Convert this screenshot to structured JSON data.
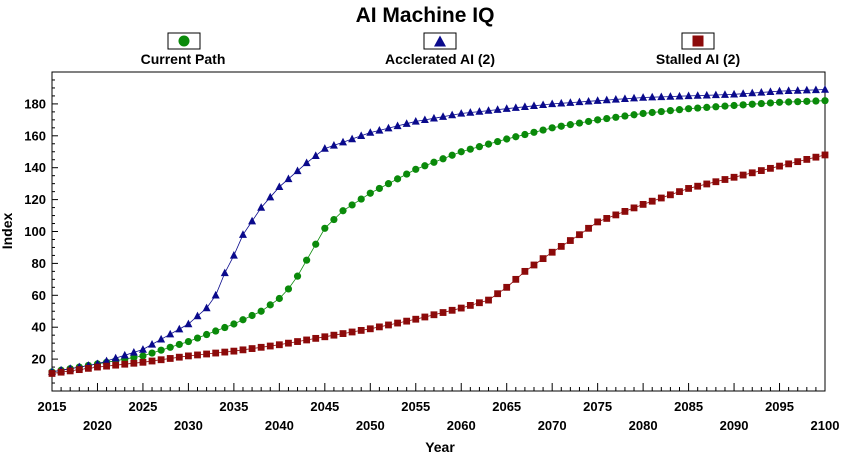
{
  "chart_data": {
    "type": "line",
    "title": "AI Machine IQ",
    "xlabel": "Year",
    "ylabel": "Index",
    "xlim": [
      2015,
      2100
    ],
    "ylim": [
      0,
      200
    ],
    "x_ticks": [
      2015,
      2020,
      2025,
      2030,
      2035,
      2040,
      2045,
      2050,
      2055,
      2060,
      2065,
      2070,
      2075,
      2080,
      2085,
      2090,
      2095,
      2100
    ],
    "y_ticks": [
      20,
      40,
      60,
      80,
      100,
      120,
      140,
      160,
      180
    ],
    "legend_placement": "top",
    "grid": false,
    "series": [
      {
        "name": "Current Path",
        "color": "#0a8a0a",
        "marker": "circle",
        "points": [
          [
            2015,
            12
          ],
          [
            2020,
            17
          ],
          [
            2025,
            22
          ],
          [
            2030,
            31
          ],
          [
            2035,
            42
          ],
          [
            2038,
            50
          ],
          [
            2040,
            58
          ],
          [
            2041,
            64
          ],
          [
            2042,
            72
          ],
          [
            2043,
            82
          ],
          [
            2044,
            92
          ],
          [
            2045,
            102
          ],
          [
            2047,
            113
          ],
          [
            2050,
            124
          ],
          [
            2055,
            139
          ],
          [
            2060,
            150
          ],
          [
            2065,
            158
          ],
          [
            2070,
            165
          ],
          [
            2075,
            170
          ],
          [
            2080,
            174
          ],
          [
            2085,
            177
          ],
          [
            2090,
            179
          ],
          [
            2095,
            181
          ],
          [
            2100,
            182
          ]
        ]
      },
      {
        "name": "Acclerated AI (2)",
        "color": "#0a0a8c",
        "marker": "triangle",
        "points": [
          [
            2015,
            12
          ],
          [
            2020,
            17
          ],
          [
            2025,
            26
          ],
          [
            2030,
            42
          ],
          [
            2032,
            52
          ],
          [
            2033,
            60
          ],
          [
            2034,
            74
          ],
          [
            2035,
            85
          ],
          [
            2036,
            98
          ],
          [
            2038,
            115
          ],
          [
            2040,
            128
          ],
          [
            2043,
            143
          ],
          [
            2045,
            152
          ],
          [
            2050,
            162
          ],
          [
            2055,
            169
          ],
          [
            2060,
            174
          ],
          [
            2065,
            177
          ],
          [
            2070,
            180
          ],
          [
            2075,
            182
          ],
          [
            2080,
            184
          ],
          [
            2085,
            185
          ],
          [
            2090,
            186
          ],
          [
            2095,
            188
          ],
          [
            2100,
            189
          ]
        ]
      },
      {
        "name": "Stalled AI (2)",
        "color": "#8c0a0a",
        "marker": "square",
        "points": [
          [
            2015,
            11
          ],
          [
            2020,
            15
          ],
          [
            2025,
            18
          ],
          [
            2030,
            22
          ],
          [
            2035,
            25
          ],
          [
            2040,
            29
          ],
          [
            2045,
            34
          ],
          [
            2050,
            39
          ],
          [
            2055,
            45
          ],
          [
            2060,
            52
          ],
          [
            2063,
            57
          ],
          [
            2065,
            65
          ],
          [
            2067,
            75
          ],
          [
            2070,
            87
          ],
          [
            2073,
            98
          ],
          [
            2075,
            106
          ],
          [
            2080,
            117
          ],
          [
            2085,
            127
          ],
          [
            2090,
            134
          ],
          [
            2095,
            141
          ],
          [
            2100,
            148
          ]
        ]
      }
    ]
  }
}
